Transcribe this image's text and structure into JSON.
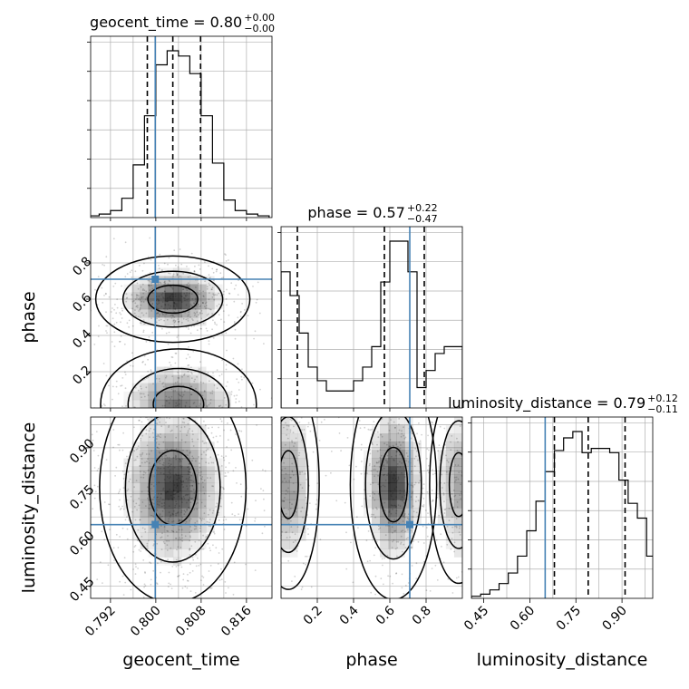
{
  "chart_data": {
    "type": "corner",
    "parameters": [
      "geocent_time",
      "phase",
      "luminosity_distance"
    ],
    "truths": [
      0.7999,
      0.71,
      0.65
    ],
    "ranges": [
      [
        0.7885,
        0.8205
      ],
      [
        0.0,
        1.0
      ],
      [
        0.41,
        1.0
      ]
    ],
    "grid": true,
    "titles": [
      {
        "name": "geocent_time",
        "value": "0.80",
        "plus": "+0.00",
        "minus": "−0.00"
      },
      {
        "name": "phase",
        "value": "0.57",
        "plus": "+0.22",
        "minus": "−0.47"
      },
      {
        "name": "luminosity_distance",
        "value": "0.79",
        "plus": "+0.12",
        "minus": "−0.11"
      }
    ],
    "quantiles": [
      [
        0.7985,
        0.803,
        0.8079
      ],
      [
        0.09,
        0.57,
        0.79
      ],
      [
        0.68,
        0.79,
        0.91
      ]
    ],
    "histograms": [
      {
        "bins": [
          0.788,
          0.79,
          0.792,
          0.794,
          0.796,
          0.798,
          0.8,
          0.802,
          0.804,
          0.806,
          0.808,
          0.81,
          0.812,
          0.814,
          0.816,
          0.818,
          0.82
        ],
        "counts": [
          1,
          2,
          4,
          11,
          30,
          58,
          87,
          95,
          92,
          82,
          58,
          31,
          10,
          4,
          2,
          1
        ]
      },
      {
        "bins": [
          0.0,
          0.05,
          0.1,
          0.15,
          0.2,
          0.25,
          0.3,
          0.35,
          0.4,
          0.45,
          0.5,
          0.55,
          0.6,
          0.65,
          0.7,
          0.75,
          0.8,
          0.85,
          0.9,
          0.95,
          1.0
        ],
        "counts": [
          40,
          33,
          22,
          12,
          8,
          5,
          5,
          5,
          8,
          12,
          18,
          37,
          49,
          49,
          40,
          6,
          11,
          16,
          18,
          18
        ]
      },
      {
        "bins": [
          0.41,
          0.44,
          0.47,
          0.5,
          0.53,
          0.56,
          0.59,
          0.62,
          0.65,
          0.68,
          0.71,
          0.74,
          0.77,
          0.8,
          0.83,
          0.86,
          0.89,
          0.92,
          0.95,
          0.98,
          1.01
        ],
        "counts": [
          1,
          2,
          4,
          7,
          12,
          20,
          32,
          46,
          60,
          70,
          76,
          79,
          69,
          71,
          71,
          69,
          56,
          45,
          38,
          20
        ]
      }
    ],
    "ticks": {
      "geocent_time": [
        "0.792",
        "0.800",
        "0.808",
        "0.816"
      ],
      "phase": [
        "0.2",
        "0.4",
        "0.6",
        "0.8"
      ],
      "luminosity_distance": [
        "0.45",
        "0.60",
        "0.75",
        "0.90"
      ]
    },
    "tick_values": {
      "geocent_time": [
        0.792,
        0.8,
        0.808,
        0.816
      ],
      "phase": [
        0.2,
        0.4,
        0.6,
        0.8
      ],
      "luminosity_distance": [
        0.45,
        0.6,
        0.75,
        0.9
      ]
    },
    "density_blobs": [
      {
        "pair": "phase_vs_geocent_time",
        "x": 0.803,
        "y": 0.6,
        "sx": 0.004,
        "sy": 0.07,
        "w": 1.0
      },
      {
        "pair": "phase_vs_geocent_time",
        "x": 0.804,
        "y": 0.02,
        "sx": 0.0045,
        "sy": 0.1,
        "w": 0.7
      },
      {
        "pair": "luminosity_distance_vs_geocent_time",
        "x": 0.803,
        "y": 0.77,
        "sx": 0.0038,
        "sy": 0.11,
        "w": 1.0
      },
      {
        "pair": "luminosity_distance_vs_phase",
        "x": 0.62,
        "y": 0.78,
        "sx": 0.07,
        "sy": 0.11,
        "w": 1.0
      },
      {
        "pair": "luminosity_distance_vs_phase",
        "x": 0.04,
        "y": 0.78,
        "sx": 0.06,
        "sy": 0.12,
        "w": 0.55
      },
      {
        "pair": "luminosity_distance_vs_phase",
        "x": 0.98,
        "y": 0.78,
        "sx": 0.06,
        "sy": 0.12,
        "w": 0.45
      }
    ],
    "colors": {
      "truth": "#4682b4",
      "hist": "#000000",
      "grid": "#b0b0b0",
      "density": "#000000",
      "scatter": "#000000"
    }
  }
}
